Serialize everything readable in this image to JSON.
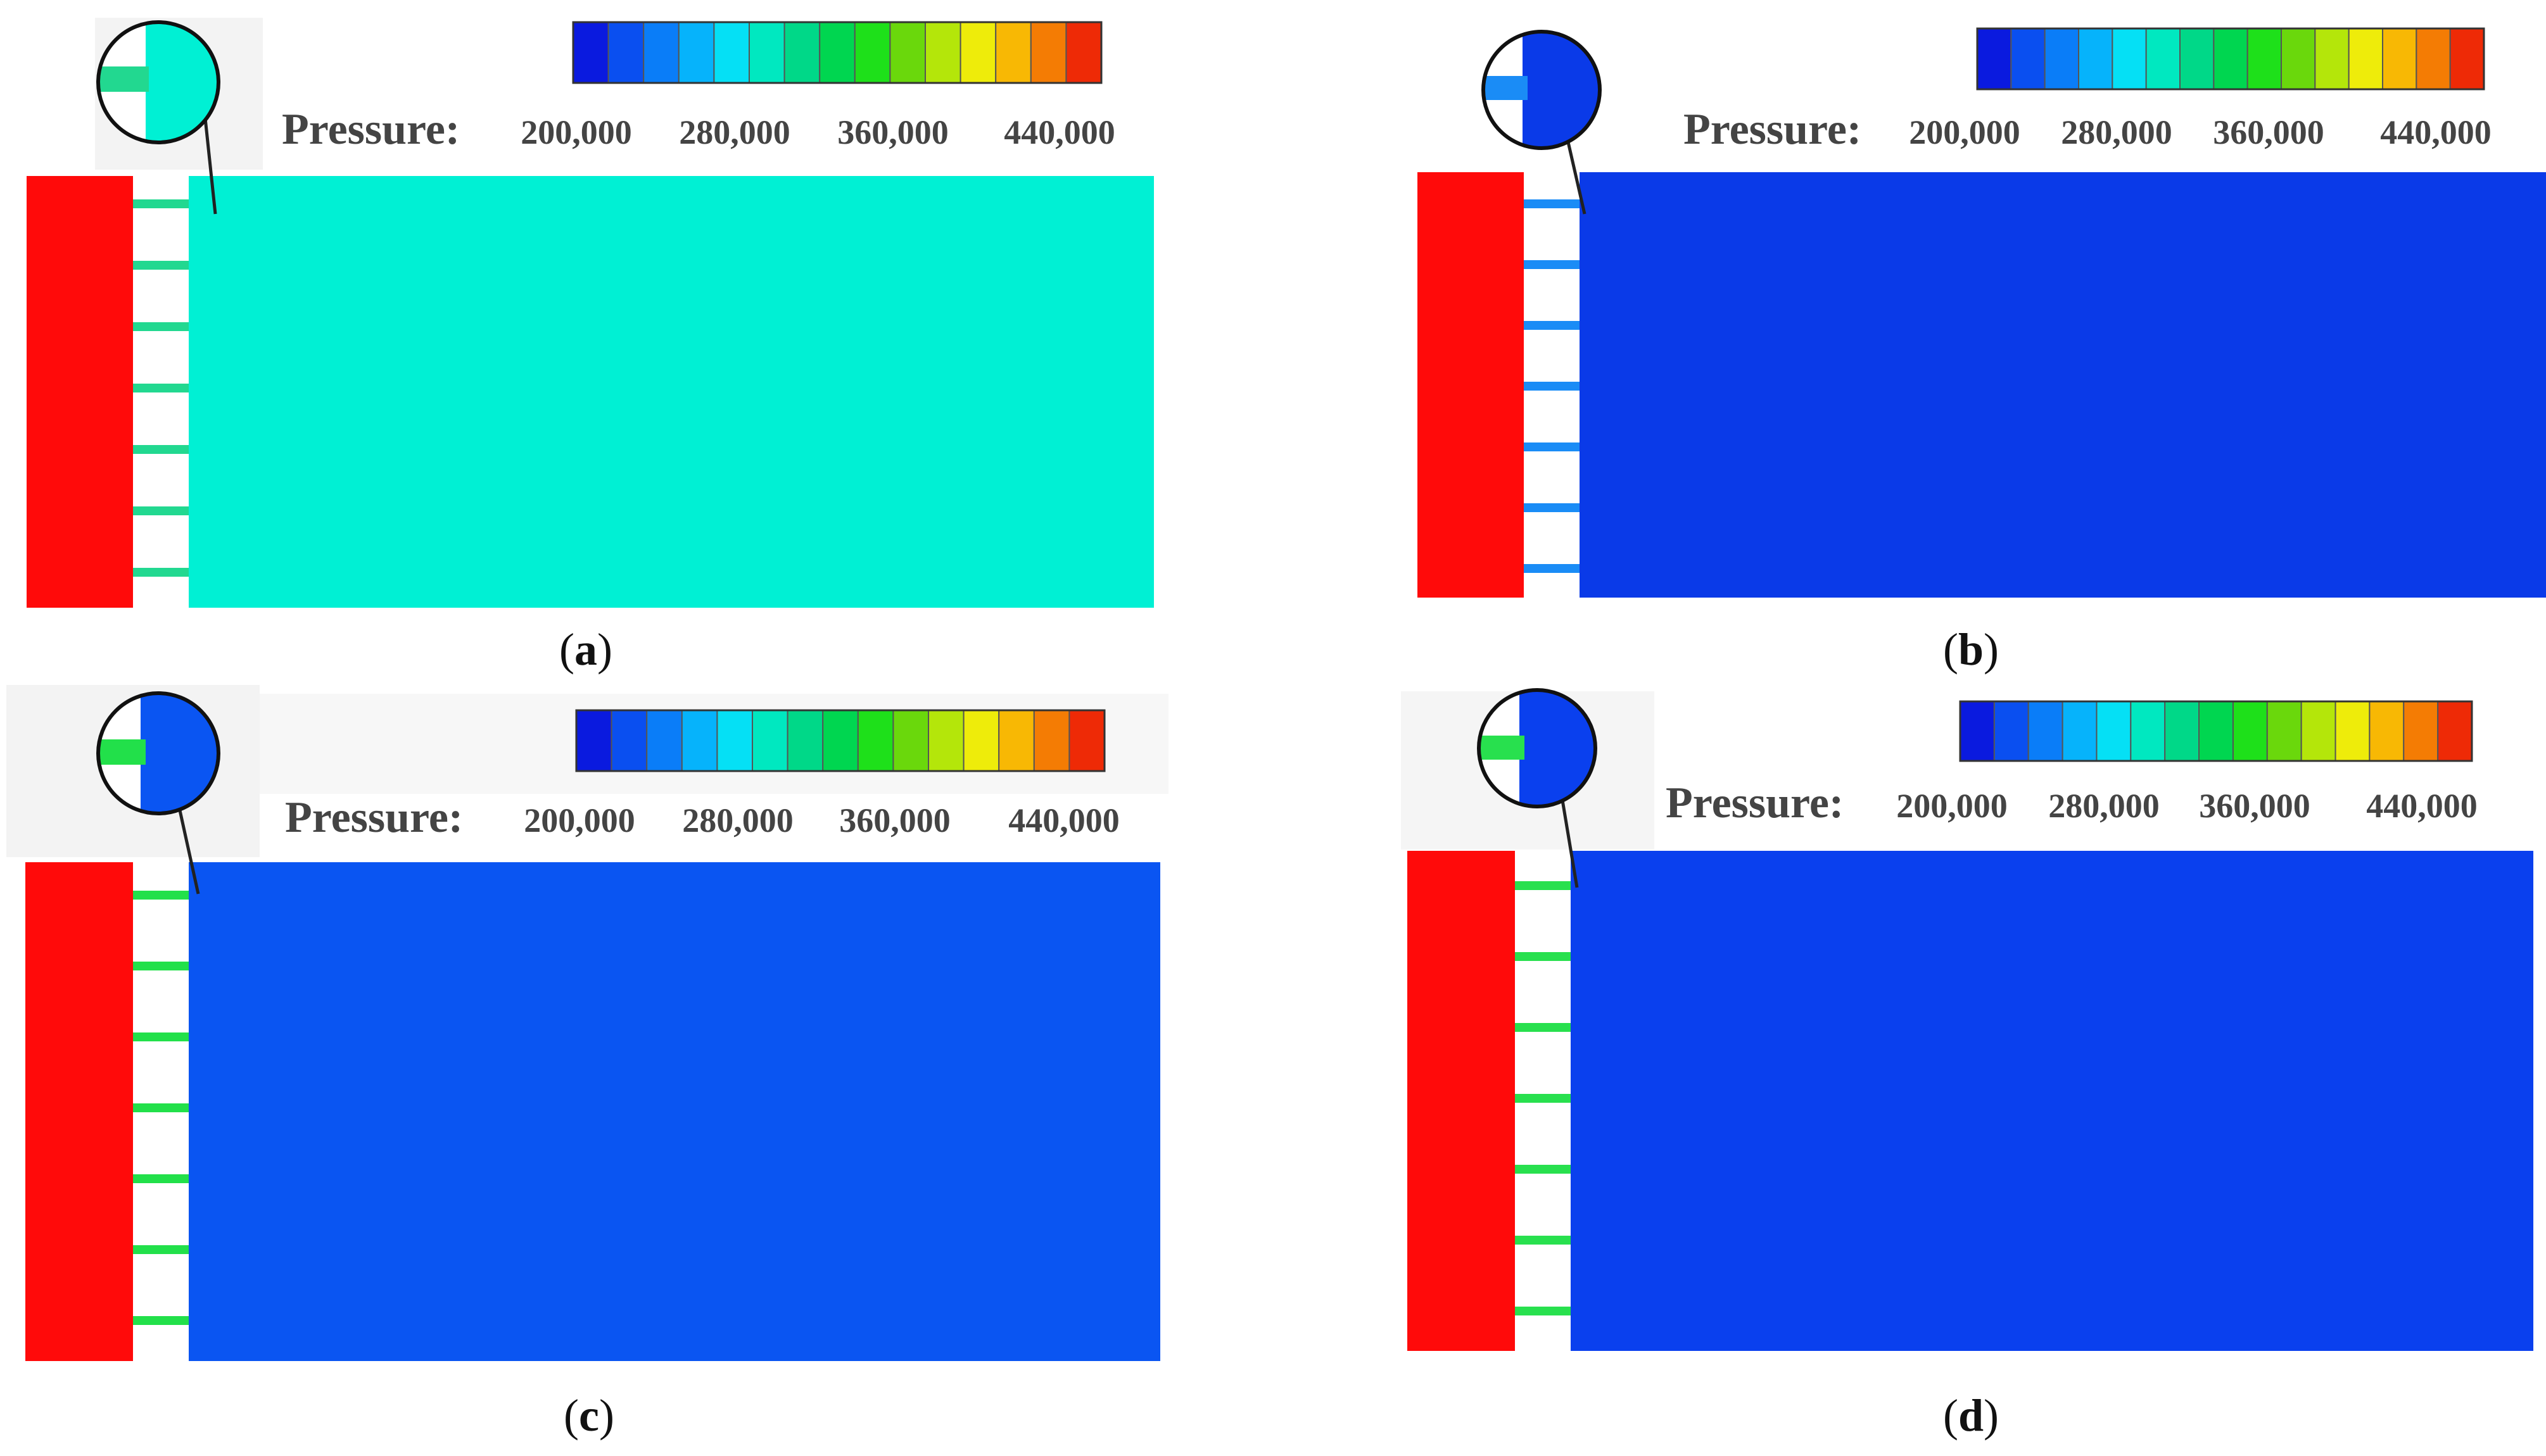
{
  "panels": [
    {
      "id": "a",
      "caption_open": "(",
      "caption_letter": "a",
      "caption_close": ")"
    },
    {
      "id": "b",
      "caption_open": "(",
      "caption_letter": "b",
      "caption_close": ")"
    },
    {
      "id": "c",
      "caption_open": "(",
      "caption_letter": "c",
      "caption_close": ")"
    },
    {
      "id": "d",
      "caption_open": "(",
      "caption_letter": "d",
      "caption_close": ")"
    }
  ],
  "legend": {
    "label": "Pressure:",
    "ticks": [
      "200,000",
      "280,000",
      "360,000",
      "440,000"
    ],
    "colors": [
      "#0a1adf",
      "#0a4ff0",
      "#0a7df8",
      "#06b3fb",
      "#05e0f5",
      "#00e8c0",
      "#00d888",
      "#00d650",
      "#1ee01a",
      "#6ad80c",
      "#b4e60a",
      "#eeec0a",
      "#f8b804",
      "#f47c04",
      "#ee2a06"
    ]
  },
  "colors": {
    "inlet": "#ff0a0a",
    "panel_a_domain": "#00f0d4",
    "panel_b_domain": "#0a3ae8",
    "panel_c_domain": "#0a55f2",
    "panel_d_domain": "#0a40ee",
    "panel_a_channel": "#22d890",
    "panel_b_channel": "#1a8cf6",
    "panel_c_channel": "#22e04a",
    "panel_d_channel": "#28e04e"
  }
}
